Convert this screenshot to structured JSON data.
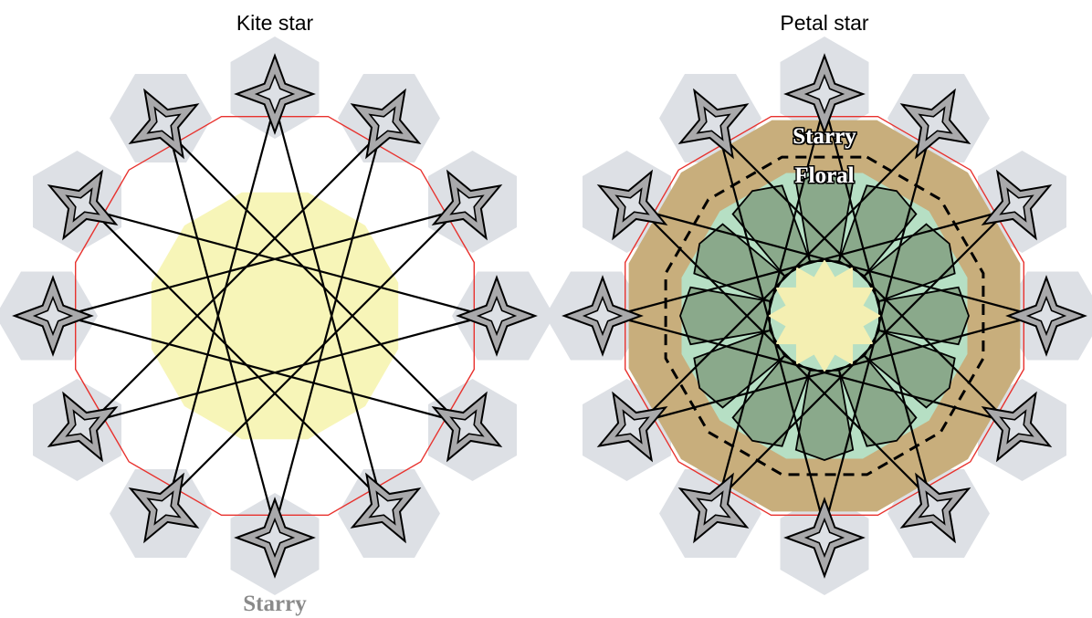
{
  "panels": [
    {
      "title": "Kite star",
      "center_label": "Starry"
    },
    {
      "title": "Petal star",
      "outer_label": "Starry",
      "inner_label": "Floral"
    }
  ],
  "colors": {
    "background": "#ffffff",
    "hexagon_fill": "#dde0e5",
    "motif_fill": "#a9a9ab",
    "line": "#000000",
    "boundary": "#e8322e",
    "kite_center": "#f7f5b8",
    "starry_band": "#c8ae7c",
    "floral_zone": "#b6dfc4",
    "petal_fill": "#8aa98b",
    "petal_center": "#f4efb2",
    "label_grey": "#8a8a8a",
    "label_white": "#ffffff"
  }
}
